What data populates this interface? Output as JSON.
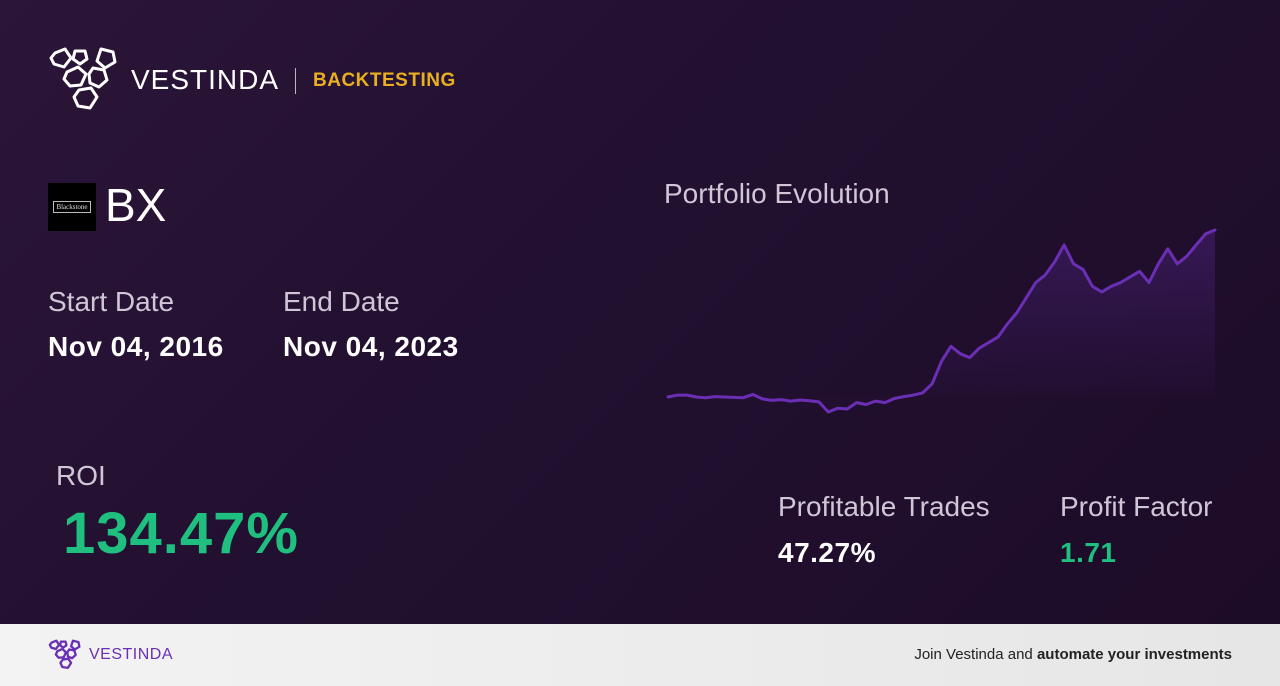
{
  "header": {
    "brand": "VESTINDA",
    "tag": "BACKTESTING",
    "tag_color": "#e8b020"
  },
  "stock": {
    "logo_text": "Blackstone",
    "ticker": "BX"
  },
  "dates": {
    "start_label": "Start Date",
    "start_value": "Nov 04, 2016",
    "end_label": "End Date",
    "end_value": "Nov 04, 2023"
  },
  "roi": {
    "label": "ROI",
    "value": "134.47%",
    "color": "#1fbf80"
  },
  "chart": {
    "title": "Portfolio Evolution",
    "line_color": "#6a2fb5"
  },
  "chart_data": {
    "type": "area",
    "title": "Portfolio Evolution",
    "values": [
      100.5,
      101,
      101,
      100.5,
      100.3,
      100.6,
      100.5,
      100.4,
      100.3,
      101.2,
      100,
      99.6,
      99.8,
      99.4,
      99.7,
      99.5,
      99.2,
      96.5,
      97.5,
      97.3,
      99,
      98.5,
      99.4,
      99,
      100.1,
      100.6,
      101,
      101.6,
      104,
      110,
      114,
      112,
      111,
      113.5,
      115,
      116.5,
      120,
      123,
      127,
      131,
      133,
      136.5,
      141,
      136,
      134.5,
      130,
      128.5,
      130,
      131,
      132.5,
      134,
      131,
      136,
      140,
      136,
      138,
      141,
      144,
      145
    ]
  },
  "stats": {
    "profitable_label": "Profitable Trades",
    "profitable_value": "47.27%",
    "factor_label": "Profit Factor",
    "factor_value": "1.71",
    "factor_color": "#1fbf80"
  },
  "footer": {
    "brand": "VESTINDA",
    "cta_prefix": "Join Vestinda and ",
    "cta_bold": "automate your investments"
  }
}
